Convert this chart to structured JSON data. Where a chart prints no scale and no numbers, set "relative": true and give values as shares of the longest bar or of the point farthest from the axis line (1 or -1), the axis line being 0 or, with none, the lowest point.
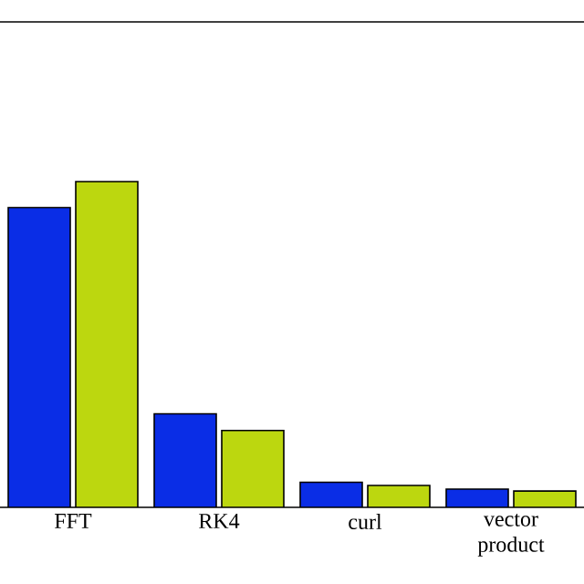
{
  "chart_data": {
    "type": "bar",
    "relative": true,
    "categories": [
      "FFT",
      "RK4",
      "curl",
      "vector product"
    ],
    "series": [
      {
        "color": "#0a2de6",
        "values": [
          0.92,
          0.287,
          0.077,
          0.056
        ]
      },
      {
        "color": "#bcd70f",
        "values": [
          1,
          0.236,
          0.067,
          0.05
        ]
      }
    ]
  }
}
